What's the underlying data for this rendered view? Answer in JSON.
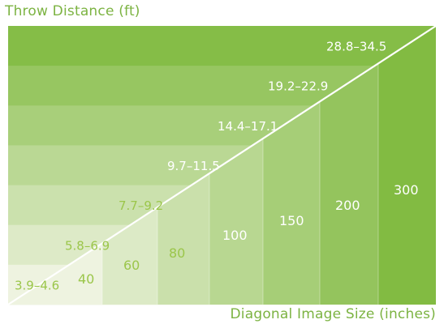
{
  "chart_data": {
    "type": "bar",
    "title": "",
    "ylabel": "Throw Distance (ft)",
    "xlabel": "Diagonal Image Size (inches)",
    "categories": [
      "40",
      "60",
      "80",
      "100",
      "150",
      "200",
      "300"
    ],
    "image_size_in": [
      40,
      60,
      80,
      100,
      150,
      200,
      300
    ],
    "throw_distance_ft": [
      {
        "min": 3.9,
        "max": 4.6,
        "label": "3.9–4.6"
      },
      {
        "min": 5.8,
        "max": 6.9,
        "label": "5.8–6.9"
      },
      {
        "min": 7.7,
        "max": 9.2,
        "label": "7.7–9.2"
      },
      {
        "min": 9.7,
        "max": 11.5,
        "label": "9.7–11.5"
      },
      {
        "min": 14.4,
        "max": 17.1,
        "label": "14.4–17.1"
      },
      {
        "min": 19.2,
        "max": 22.9,
        "label": "19.2–22.9"
      },
      {
        "min": 28.8,
        "max": 34.5,
        "label": "28.8–34.5"
      }
    ],
    "grid": false,
    "legend": "none"
  },
  "colors": {
    "title": "#7cb342",
    "light": "#eef3e0",
    "dark": "#7cb83a",
    "diagonal": "#ffffff",
    "text_light_bg": "#9bc64a",
    "text_dark_bg": "#ffffff"
  }
}
